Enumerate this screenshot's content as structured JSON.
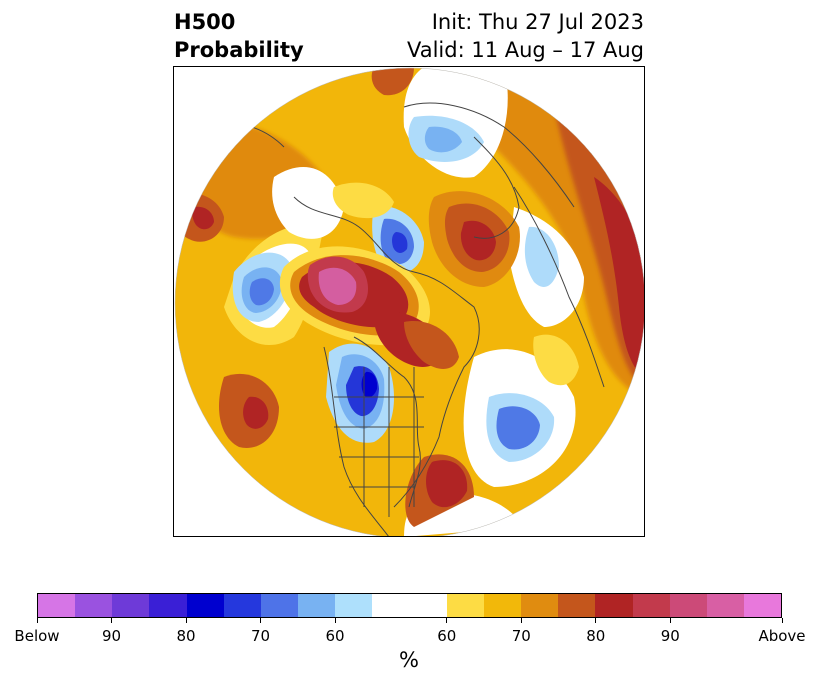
{
  "title": {
    "left_line1": "H500",
    "left_line2": "Probability",
    "right_line1": "Init: Thu 27 Jul 2023",
    "right_line2": "Valid: 11 Aug – 17 Aug"
  },
  "map": {
    "projection": "north-polar-stereographic",
    "variable": "500 hPa height anomaly probability",
    "colors": {
      "below_strong": "#2436d8",
      "below_mid": "#4f79e6",
      "below_light": "#aedbfa",
      "neutral": "#ffffff",
      "above_60": "#fddc44",
      "above_65": "#f2b60a",
      "above_70": "#e08a10",
      "above_75": "#c4561c",
      "above_80": "#b02424",
      "above_90": "#d45ea0"
    }
  },
  "colorbar": {
    "colors": [
      "#d675e6",
      "#9a52e0",
      "#6e3ad8",
      "#3a1fd6",
      "#0000cf",
      "#2538dd",
      "#4e73e8",
      "#78b2f2",
      "#aee0fc",
      "#ffffff",
      "#ffffff",
      "#fddc44",
      "#f2b80a",
      "#e08c10",
      "#c4561c",
      "#b02424",
      "#c23a4c",
      "#cc4a78",
      "#d85fa4",
      "#e878dc"
    ],
    "tick_labels": [
      "Below",
      "90",
      "80",
      "70",
      "60",
      "60",
      "70",
      "80",
      "90",
      "Above"
    ],
    "unit": "%"
  }
}
